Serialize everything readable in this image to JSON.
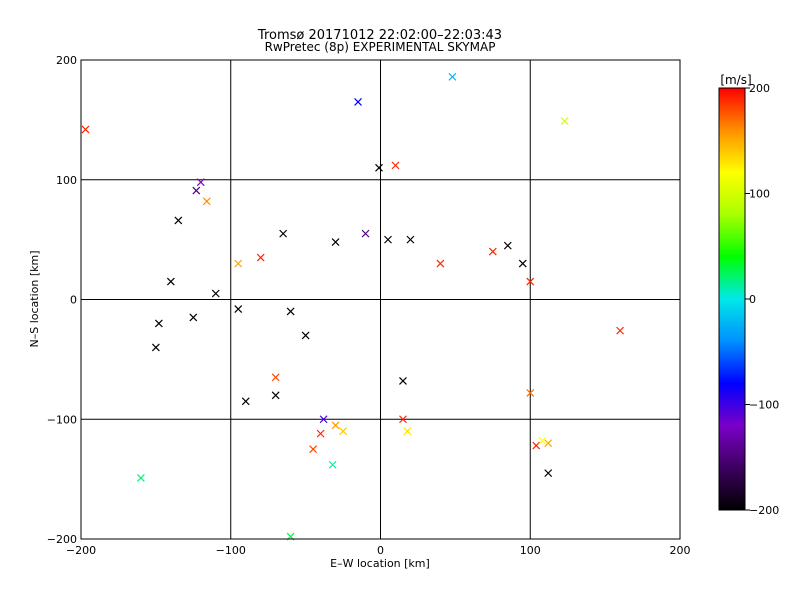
{
  "chart_data": {
    "type": "scatter",
    "title": "Tromsø 20171012 22:02:00–22:03:43",
    "subtitle": "RwPretec (8p) EXPERIMENTAL SKYMAP",
    "xlabel": "E–W location [km]",
    "ylabel": "N–S location [km]",
    "xlim": [
      -200,
      200
    ],
    "ylim": [
      -200,
      200
    ],
    "xticks": [
      -200,
      -100,
      0,
      100,
      200
    ],
    "yticks": [
      -200,
      -100,
      0,
      100,
      200
    ],
    "xtick_labels": [
      "−200",
      "−100",
      "0",
      "100",
      "200"
    ],
    "ytick_labels": [
      "−200",
      "−100",
      "0",
      "100",
      "200"
    ],
    "grid": true,
    "colorbar": {
      "label": "[m/s]",
      "range": [
        -200,
        200
      ],
      "ticks": [
        200,
        100,
        0,
        -100,
        -200
      ],
      "tick_labels": [
        "200",
        "100",
        "0",
        "−100",
        "−200"
      ],
      "colors": [
        "#000000",
        "#3d0060",
        "#7a00c8",
        "#0000ff",
        "#0090ff",
        "#00e8e8",
        "#00ff00",
        "#a8ff00",
        "#ffff00",
        "#ff9000",
        "#ff0000"
      ]
    },
    "markers": {
      "small": "dot",
      "large": "x"
    },
    "series": [
      {
        "values": [
          {
            "x": -197,
            "y": 142,
            "v": 190,
            "m": "x"
          },
          {
            "x": -160,
            "y": -149,
            "v": 20,
            "m": "x"
          },
          {
            "x": -135,
            "y": 66,
            "v": -200,
            "m": "x"
          },
          {
            "x": -123,
            "y": 91,
            "v": -150,
            "m": "x"
          },
          {
            "x": -120,
            "y": 98,
            "v": -120,
            "m": "x"
          },
          {
            "x": -116,
            "y": 82,
            "v": 160,
            "m": "x"
          },
          {
            "x": -140,
            "y": 15,
            "v": -200,
            "m": "x"
          },
          {
            "x": -148,
            "y": -20,
            "v": -200,
            "m": "x"
          },
          {
            "x": -150,
            "y": -40,
            "v": -200,
            "m": "x"
          },
          {
            "x": -125,
            "y": -15,
            "v": -200,
            "m": "x"
          },
          {
            "x": -110,
            "y": 5,
            "v": -200,
            "m": "x"
          },
          {
            "x": -95,
            "y": -8,
            "v": -200,
            "m": "x"
          },
          {
            "x": -90,
            "y": -85,
            "v": -200,
            "m": "x"
          },
          {
            "x": -70,
            "y": -80,
            "v": -200,
            "m": "x"
          },
          {
            "x": -65,
            "y": 55,
            "v": -200,
            "m": "x"
          },
          {
            "x": -45,
            "y": -125,
            "v": 180,
            "m": "x"
          },
          {
            "x": -40,
            "y": -112,
            "v": 190,
            "m": "x"
          },
          {
            "x": -38,
            "y": -100,
            "v": -100,
            "m": "x"
          },
          {
            "x": -30,
            "y": -105,
            "v": 160,
            "m": "x"
          },
          {
            "x": -25,
            "y": -110,
            "v": 140,
            "m": "x"
          },
          {
            "x": -32,
            "y": -138,
            "v": 10,
            "m": "x"
          },
          {
            "x": -60,
            "y": -198,
            "v": 30,
            "m": "x"
          },
          {
            "x": -15,
            "y": 165,
            "v": -80,
            "m": "x"
          },
          {
            "x": 10,
            "y": 112,
            "v": 190,
            "m": "x"
          },
          {
            "x": -1,
            "y": 110,
            "v": -200,
            "m": "x"
          },
          {
            "x": 48,
            "y": 186,
            "v": -20,
            "m": "x"
          },
          {
            "x": 123,
            "y": 149,
            "v": 100,
            "m": "x"
          },
          {
            "x": 160,
            "y": -26,
            "v": 190,
            "m": "x"
          },
          {
            "x": 104,
            "y": -122,
            "v": 190,
            "m": "x"
          },
          {
            "x": 108,
            "y": -118,
            "v": 120,
            "m": "x"
          },
          {
            "x": 112,
            "y": -120,
            "v": 150,
            "m": "x"
          },
          {
            "x": 112,
            "y": -145,
            "v": -200,
            "m": "x"
          },
          {
            "x": 100,
            "y": -78,
            "v": 170,
            "m": "x"
          },
          {
            "x": 15,
            "y": -100,
            "v": 190,
            "m": "x"
          },
          {
            "x": 18,
            "y": -110,
            "v": 130,
            "m": "x"
          },
          {
            "x": 15,
            "y": -68,
            "v": -200,
            "m": "x"
          },
          {
            "x": -10,
            "y": 55,
            "v": -150,
            "m": "x"
          },
          {
            "x": 5,
            "y": 50,
            "v": -200,
            "m": "x"
          },
          {
            "x": 20,
            "y": 50,
            "v": -200,
            "m": "x"
          },
          {
            "x": -30,
            "y": 48,
            "v": -200,
            "m": "x"
          },
          {
            "x": 40,
            "y": 30,
            "v": 190,
            "m": "x"
          },
          {
            "x": 75,
            "y": 40,
            "v": 190,
            "m": "x"
          },
          {
            "x": 85,
            "y": 45,
            "v": -200,
            "m": "x"
          },
          {
            "x": 95,
            "y": 30,
            "v": -200,
            "m": "x"
          },
          {
            "x": 100,
            "y": 15,
            "v": 190,
            "m": "x"
          },
          {
            "x": -80,
            "y": 35,
            "v": 190,
            "m": "x"
          },
          {
            "x": -95,
            "y": 30,
            "v": 150,
            "m": "x"
          },
          {
            "x": -60,
            "y": -10,
            "v": -200,
            "m": "x"
          },
          {
            "x": -50,
            "y": -30,
            "v": -200,
            "m": "x"
          },
          {
            "x": -70,
            "y": -65,
            "v": 180,
            "m": "x"
          }
        ]
      }
    ]
  }
}
